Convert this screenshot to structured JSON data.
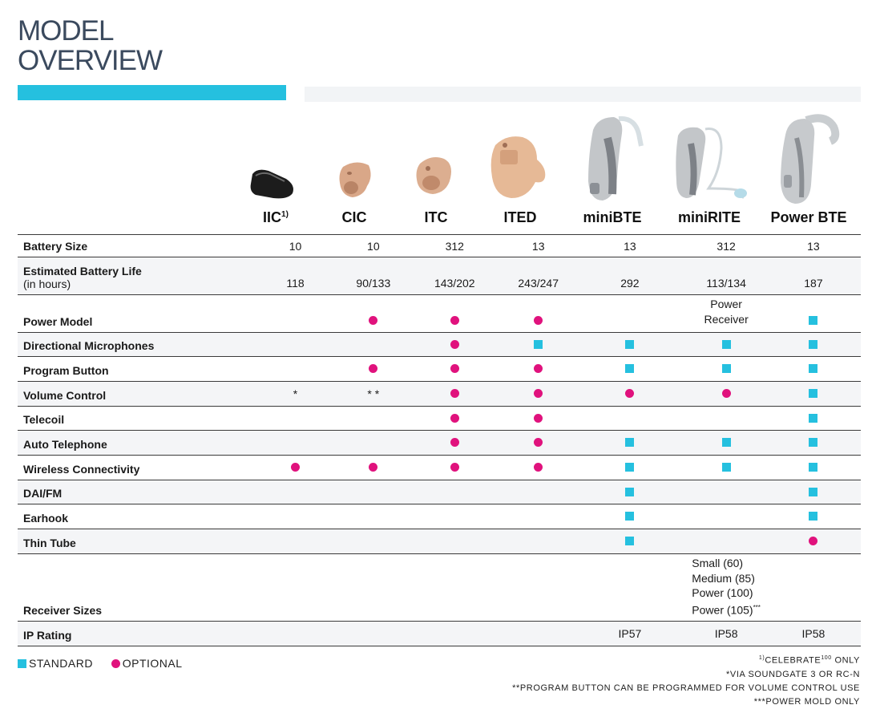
{
  "title": {
    "line1": "MODEL",
    "line2": "OVERVIEW"
  },
  "colors": {
    "accent": "#25c0df",
    "optional": "#e0127d",
    "title": "#3b4a5e"
  },
  "models": [
    {
      "name": "IIC",
      "sup": "1)"
    },
    {
      "name": "CIC",
      "sup": ""
    },
    {
      "name": "ITC",
      "sup": ""
    },
    {
      "name": "ITED",
      "sup": ""
    },
    {
      "name": "miniBTE",
      "sup": ""
    },
    {
      "name": "miniRITE",
      "sup": ""
    },
    {
      "name": "Power BTE",
      "sup": ""
    }
  ],
  "rows": {
    "battery_size": {
      "label": "Battery Size",
      "values": [
        "10",
        "10",
        "312",
        "13",
        "13",
        "312",
        "13"
      ]
    },
    "battery_life": {
      "label": "Estimated Battery Life",
      "sublabel": "(in hours)",
      "values": [
        "118",
        "90/133",
        "143/202",
        "243/247",
        "292",
        "113/134",
        "187"
      ]
    },
    "power_model": {
      "label": "Power Model",
      "text_line1": "Power",
      "text_line2": "Receiver"
    },
    "directional_mics": {
      "label": "Directional Microphones"
    },
    "program_button": {
      "label": "Program Button"
    },
    "volume_control": {
      "label": "Volume Control",
      "iic_text": "*",
      "cic_text": "* *"
    },
    "telecoil": {
      "label": "Telecoil"
    },
    "auto_telephone": {
      "label": "Auto Telephone"
    },
    "wireless": {
      "label": "Wireless Connectivity"
    },
    "dai_fm": {
      "label": "DAI/FM"
    },
    "earhook": {
      "label": "Earhook"
    },
    "thin_tube": {
      "label": "Thin Tube"
    },
    "receiver_sizes": {
      "label": "Receiver Sizes",
      "sizes": [
        "Small (60)",
        "Medium (85)",
        "Power (100)",
        "Power (105)"
      ],
      "last_sup": "***"
    },
    "ip_rating": {
      "label": "IP Rating",
      "values": [
        "",
        "",
        "",
        "",
        "IP57",
        "IP58",
        "IP58"
      ]
    }
  },
  "legend": {
    "standard": "STANDARD",
    "optional": "OPTIONAL"
  },
  "notes": {
    "n1_sup": "1)",
    "n1_a": "CELEBRATE",
    "n1_sup2": "100",
    "n1_b": " ONLY",
    "n2": "*VIA SOUNDGATE 3 OR RC-N",
    "n3": "**PROGRAM BUTTON CAN BE PROGRAMMED FOR VOLUME CONTROL USE",
    "n4": "***POWER MOLD ONLY"
  }
}
